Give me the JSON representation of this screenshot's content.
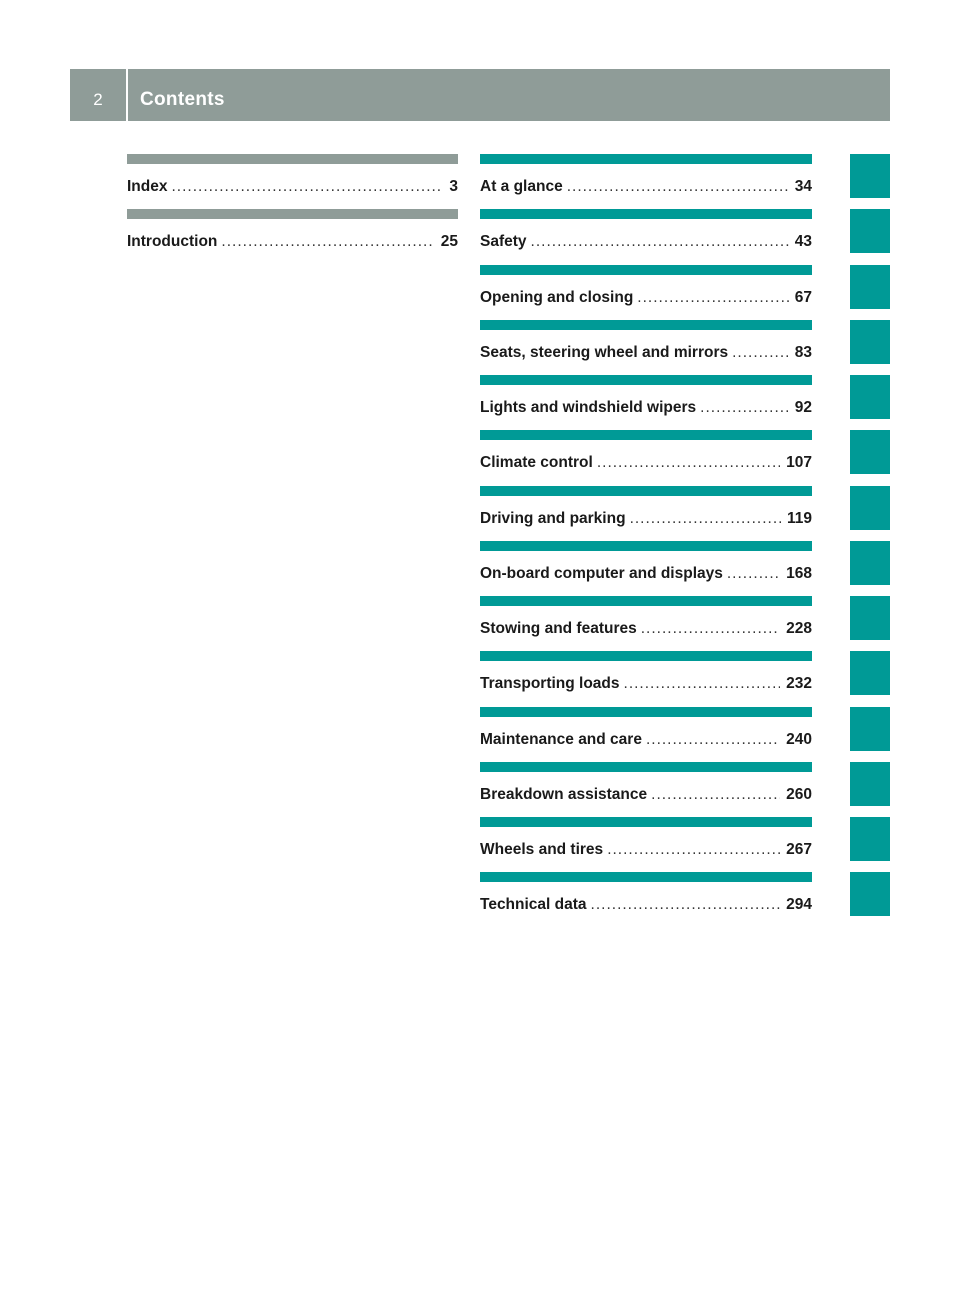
{
  "header": {
    "page_number": "2",
    "title": "Contents"
  },
  "left_entries": [
    {
      "label": "Index",
      "page": "3"
    },
    {
      "label": "Introduction",
      "page": "25"
    }
  ],
  "right_entries": [
    {
      "label": "At a glance",
      "page": "34"
    },
    {
      "label": "Safety",
      "page": "43"
    },
    {
      "label": "Opening and closing",
      "page": "67"
    },
    {
      "label": "Seats, steering wheel and mirrors",
      "page": "83"
    },
    {
      "label": "Lights and windshield wipers",
      "page": "92"
    },
    {
      "label": "Climate control",
      "page": "107"
    },
    {
      "label": "Driving and parking",
      "page": "119"
    },
    {
      "label": "On-board computer and displays",
      "page": "168"
    },
    {
      "label": "Stowing and features",
      "page": "228"
    },
    {
      "label": "Transporting loads",
      "page": "232"
    },
    {
      "label": "Maintenance and care",
      "page": "240"
    },
    {
      "label": "Breakdown assistance",
      "page": "260"
    },
    {
      "label": "Wheels and tires",
      "page": "267"
    },
    {
      "label": "Technical data",
      "page": "294"
    }
  ],
  "colors": {
    "header_gray": "#8f9c98",
    "accent_teal": "#009a96"
  },
  "thumb_tab_count": 14
}
